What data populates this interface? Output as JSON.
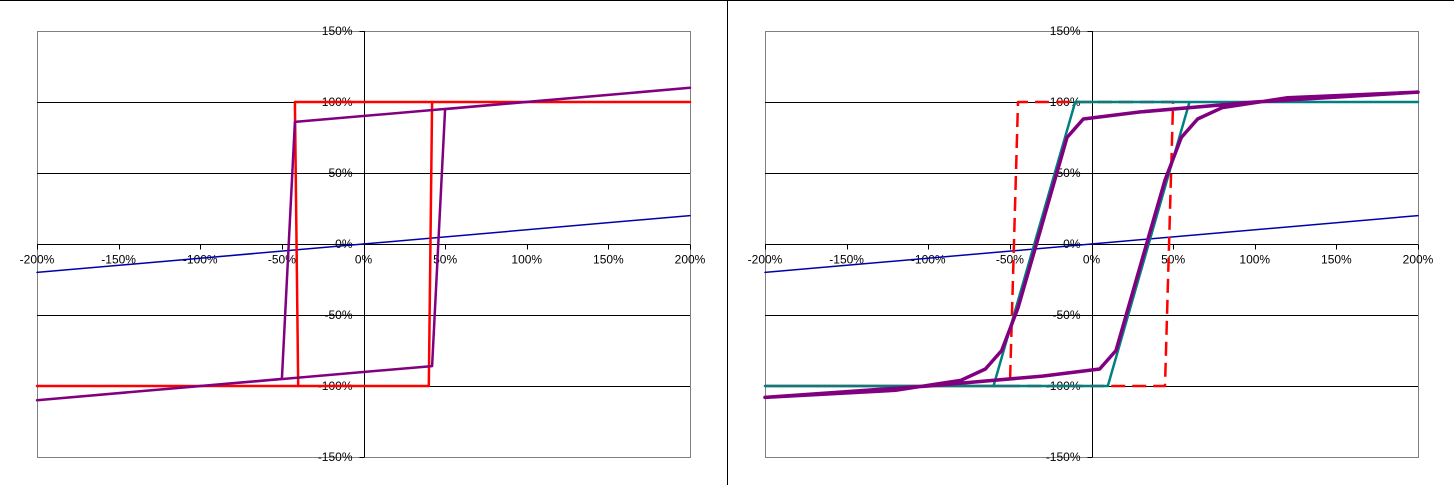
{
  "chart_data": [
    {
      "type": "line",
      "title": "",
      "xlabel": "",
      "ylabel": "",
      "xlim": [
        -200,
        200
      ],
      "ylim": [
        -150,
        150
      ],
      "x_ticks": [
        -200,
        -150,
        -100,
        -50,
        0,
        50,
        100,
        150,
        200
      ],
      "y_ticks": [
        -150,
        -100,
        -50,
        0,
        50,
        100,
        150
      ],
      "x_tick_labels": [
        "-200%",
        "-150%",
        "-100%",
        "-50%",
        "0%",
        "50%",
        "100%",
        "150%",
        "200%"
      ],
      "y_tick_labels": [
        "-150%",
        "-100%",
        "-50%",
        "0%",
        "50%",
        "100%",
        "150%"
      ],
      "grid": "horizontal",
      "legend": "none",
      "series": [
        {
          "color": "#0000aa",
          "style": "solid",
          "width": 1.5,
          "points": [
            [
              -200,
              -20
            ],
            [
              200,
              20
            ]
          ]
        },
        {
          "color": "#ff0000",
          "style": "solid",
          "width": 2.5,
          "points": [
            [
              -200,
              -100
            ],
            [
              40,
              -100
            ],
            [
              42,
              100
            ],
            [
              200,
              100
            ],
            [
              -42,
              100
            ],
            [
              -40,
              -100
            ],
            [
              -200,
              -100
            ]
          ]
        },
        {
          "color": "#800080",
          "style": "solid",
          "width": 2.5,
          "points": [
            [
              -200,
              -110
            ],
            [
              42,
              -86
            ],
            [
              50,
              95
            ],
            [
              200,
              110
            ],
            [
              -42,
              86
            ],
            [
              -50,
              -95
            ],
            [
              -200,
              -110
            ]
          ]
        }
      ]
    },
    {
      "type": "line",
      "title": "",
      "xlabel": "",
      "ylabel": "",
      "xlim": [
        -200,
        200
      ],
      "ylim": [
        -150,
        150
      ],
      "x_ticks": [
        -200,
        -150,
        -100,
        -50,
        0,
        50,
        100,
        150,
        200
      ],
      "y_ticks": [
        -150,
        -100,
        -50,
        0,
        50,
        100,
        150
      ],
      "x_tick_labels": [
        "-200%",
        "-150%",
        "-100%",
        "-50%",
        "0%",
        "50%",
        "100%",
        "150%",
        "200%"
      ],
      "y_tick_labels": [
        "-150%",
        "-100%",
        "-50%",
        "0%",
        "50%",
        "100%",
        "150%"
      ],
      "grid": "horizontal",
      "legend": "none",
      "series": [
        {
          "color": "#0000aa",
          "style": "solid",
          "width": 1.5,
          "points": [
            [
              -200,
              -20
            ],
            [
              200,
              20
            ]
          ]
        },
        {
          "color": "#ff0000",
          "style": "dashed",
          "width": 2.5,
          "points": [
            [
              -200,
              -100
            ],
            [
              -50,
              -100
            ],
            [
              -45,
              100
            ],
            [
              -40,
              100
            ],
            [
              0,
              100
            ],
            [
              40,
              100
            ],
            [
              45,
              100
            ],
            [
              50,
              100
            ],
            [
              45,
              -100
            ],
            [
              40,
              -100
            ],
            [
              -45,
              -100
            ],
            [
              -200,
              -100
            ]
          ]
        },
        {
          "color": "#008080",
          "style": "solid",
          "width": 2.5,
          "points": [
            [
              -200,
              -100
            ],
            [
              -60,
              -100
            ],
            [
              -10,
              100
            ],
            [
              200,
              100
            ],
            [
              60,
              100
            ],
            [
              10,
              -100
            ],
            [
              -200,
              -100
            ]
          ]
        },
        {
          "color": "#800080",
          "style": "solid",
          "width": 3.5,
          "points": [
            [
              -200,
              -108
            ],
            [
              -120,
              -103
            ],
            [
              -80,
              -96
            ],
            [
              -65,
              -88
            ],
            [
              -55,
              -75
            ],
            [
              -45,
              -45
            ],
            [
              -35,
              -5
            ],
            [
              -25,
              35
            ],
            [
              -15,
              75
            ],
            [
              -5,
              88
            ],
            [
              30,
              93
            ],
            [
              100,
              100
            ],
            [
              200,
              107
            ],
            [
              120,
              103
            ],
            [
              80,
              96
            ],
            [
              65,
              88
            ],
            [
              55,
              75
            ],
            [
              45,
              45
            ],
            [
              35,
              5
            ],
            [
              25,
              -35
            ],
            [
              15,
              -75
            ],
            [
              5,
              -88
            ],
            [
              -30,
              -93
            ],
            [
              -100,
              -100
            ],
            [
              -200,
              -108
            ]
          ]
        }
      ]
    }
  ]
}
